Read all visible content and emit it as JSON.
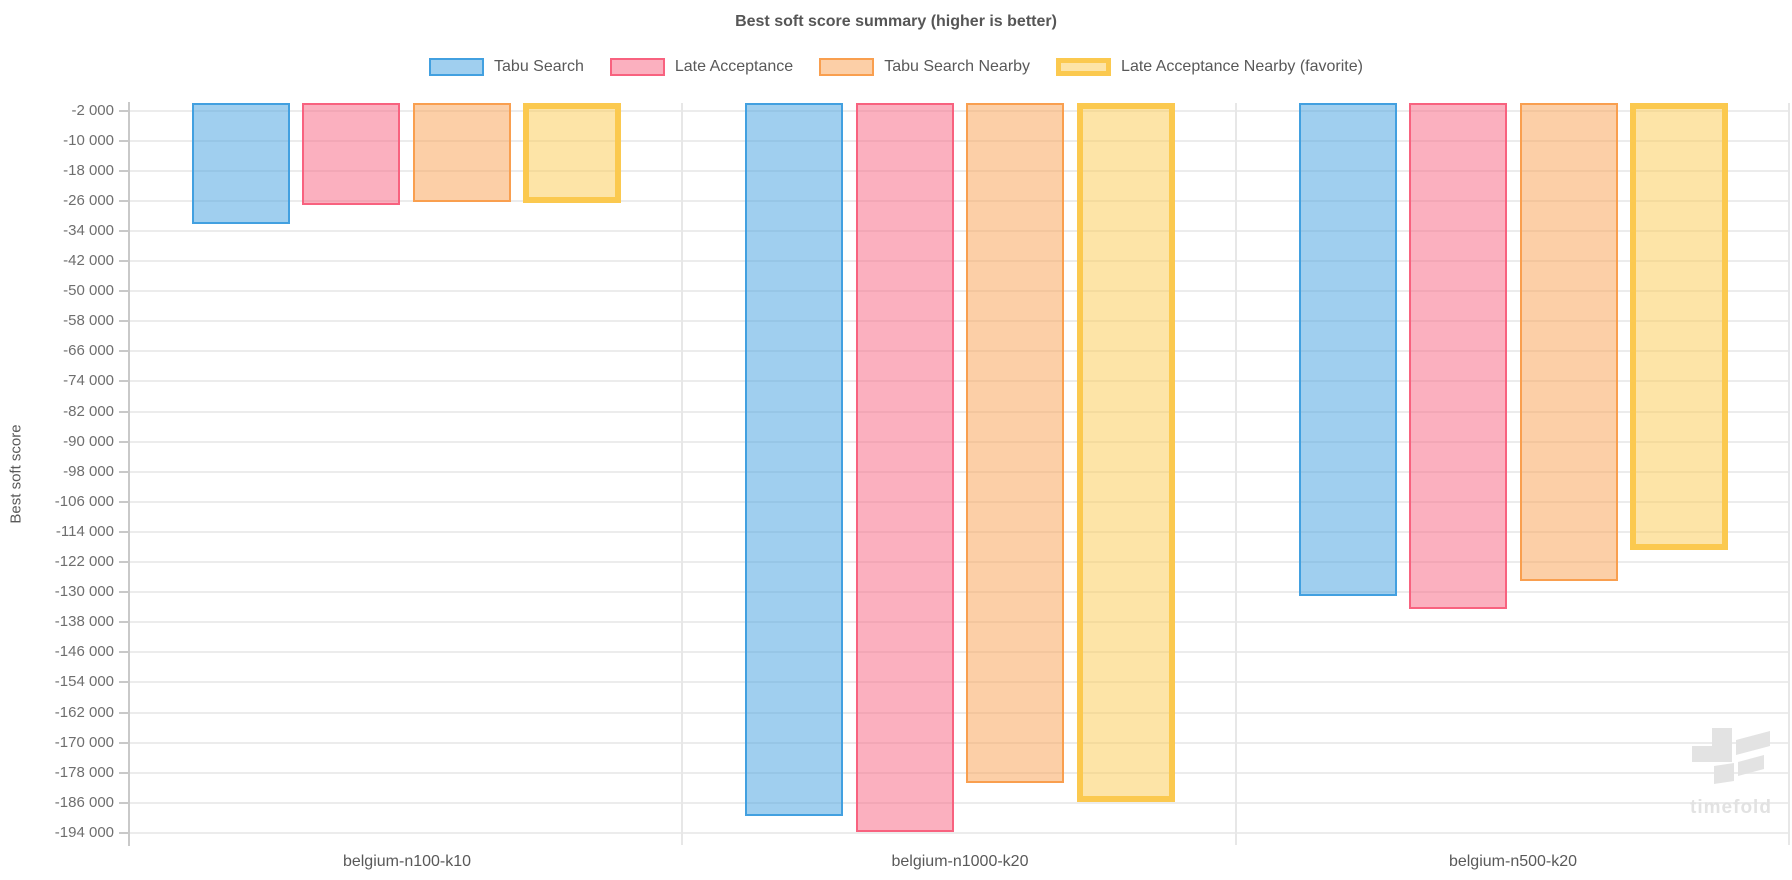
{
  "chart_data": {
    "type": "bar",
    "title": "Best soft score summary (higher is better)",
    "xlabel": "",
    "ylabel": "Best soft score",
    "categories": [
      "belgium-n100-k10",
      "belgium-n1000-k20",
      "belgium-n500-k20"
    ],
    "series": [
      {
        "name": "Tabu Search",
        "color": "#42a0e0",
        "favorite": false,
        "values": [
          -32100,
          -189500,
          -131100
        ]
      },
      {
        "name": "Late Acceptance",
        "color": "#f8627f",
        "favorite": false,
        "values": [
          -27100,
          -193700,
          -134500
        ]
      },
      {
        "name": "Tabu Search Nearby",
        "color": "#f99f4f",
        "favorite": false,
        "values": [
          -26400,
          -180700,
          -127100
        ]
      },
      {
        "name": "Late Acceptance Nearby (favorite)",
        "color": "#fbc94f",
        "favorite": true,
        "values": [
          -26500,
          -185800,
          -118800
        ]
      }
    ],
    "ylim": [
      -197200,
      0
    ],
    "ytick_labels": [
      "-2 000",
      "-10 000",
      "-18 000",
      "-26 000",
      "-34 000",
      "-42 000",
      "-50 000",
      "-58 000",
      "-66 000",
      "-74 000",
      "-82 000",
      "-90 000",
      "-98 000",
      "-106 000",
      "-114 000",
      "-122 000",
      "-130 000",
      "-138 000",
      "-146 000",
      "-154 000",
      "-162 000",
      "-170 000",
      "-178 000",
      "-186 000",
      "-194 000"
    ],
    "grid": true,
    "legend_position": "top",
    "bars_hang_from_zero_at_top": true
  },
  "watermark": {
    "text": "timefold"
  }
}
